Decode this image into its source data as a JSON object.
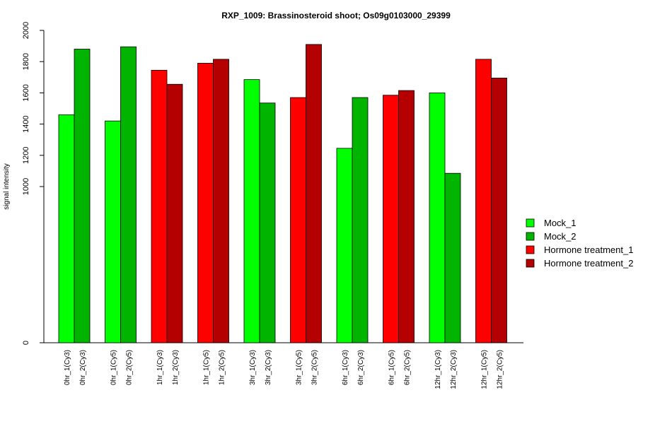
{
  "chart_data": {
    "type": "bar",
    "title": "RXP_1009: Brassinosteroid shoot; Os09g0103000_29399",
    "xlabel": "",
    "ylabel": "signal intensity",
    "ylim": [
      0,
      2000
    ],
    "yticks": [
      0,
      1000,
      1200,
      1400,
      1600,
      1800,
      2000
    ],
    "grid": false,
    "legend_position": "right",
    "categories": [
      "0hr_1(Cy3)",
      "0hr_2(Cy3)",
      "0hr_1(Cy5)",
      "0hr_2(Cy5)",
      "1hr_1(Cy3)",
      "1hr_2(Cy3)",
      "1hr_1(Cy5)",
      "1hr_2(Cy5)",
      "3hr_1(Cy3)",
      "3hr_2(Cy3)",
      "3hr_1(Cy5)",
      "3hr_2(Cy5)",
      "6hr_1(Cy3)",
      "6hr_2(Cy3)",
      "6hr_1(Cy5)",
      "6hr_2(Cy5)",
      "12hr_1(Cy3)",
      "12hr_2(Cy3)",
      "12hr_1(Cy5)",
      "12hr_2(Cy5)"
    ],
    "values": [
      1460,
      1880,
      1420,
      1895,
      1745,
      1655,
      1790,
      1815,
      1685,
      1535,
      1570,
      1910,
      1245,
      1570,
      1585,
      1615,
      1600,
      1085,
      1815,
      1695
    ],
    "bar_series": [
      "Mock_1",
      "Mock_2",
      "Mock_1",
      "Mock_2",
      "Hormone treatment_1",
      "Hormone treatment_2",
      "Hormone treatment_1",
      "Hormone treatment_2",
      "Mock_1",
      "Mock_2",
      "Hormone treatment_1",
      "Hormone treatment_2",
      "Mock_1",
      "Mock_2",
      "Hormone treatment_1",
      "Hormone treatment_2",
      "Mock_1",
      "Mock_2",
      "Hormone treatment_1",
      "Hormone treatment_2"
    ],
    "series": [
      {
        "name": "Mock_1",
        "color": "#00ff00"
      },
      {
        "name": "Mock_2",
        "color": "#00b400"
      },
      {
        "name": "Hormone treatment_1",
        "color": "#ff0000"
      },
      {
        "name": "Hormone treatment_2",
        "color": "#b40000"
      }
    ]
  }
}
